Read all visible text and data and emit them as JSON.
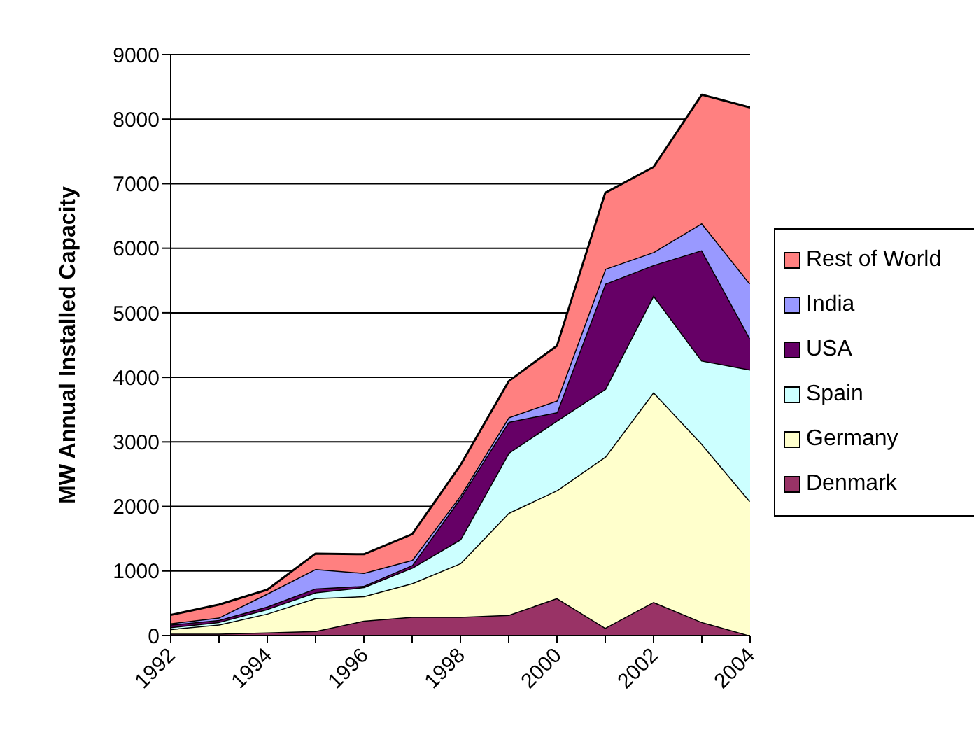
{
  "chart_data": {
    "type": "area",
    "stacked": true,
    "ylabel": "MW Annual Installed Capacity",
    "x": [
      1992,
      1993,
      1994,
      1995,
      1996,
      1997,
      1998,
      1999,
      2000,
      2001,
      2002,
      2003,
      2004
    ],
    "xlim": [
      1992,
      2004
    ],
    "xticks": [
      1992,
      {
        "value": 1993,
        "label": null
      },
      1994,
      {
        "value": 1995,
        "label": null
      },
      1996,
      {
        "value": 1997,
        "label": null
      },
      1998,
      {
        "value": 1999,
        "label": null
      },
      2000,
      {
        "value": 2001,
        "label": null
      },
      2002,
      {
        "value": 2003,
        "label": null
      },
      2004
    ],
    "ylim": [
      0,
      9000
    ],
    "yticks": [
      0,
      1000,
      2000,
      3000,
      4000,
      5000,
      6000,
      7000,
      8000,
      9000
    ],
    "grid": "y",
    "legend": "right",
    "series": [
      {
        "name": "Denmark",
        "color": "#993366",
        "values": [
          30,
          30,
          50,
          70,
          230,
          290,
          290,
          320,
          580,
          120,
          520,
          210,
          0
        ]
      },
      {
        "name": "Germany",
        "color": "#ffffcc",
        "values": [
          70,
          140,
          290,
          510,
          380,
          520,
          830,
          1580,
          1670,
          2650,
          3250,
          2760,
          2080
        ]
      },
      {
        "name": "Spain",
        "color": "#ccffff",
        "values": [
          30,
          40,
          70,
          90,
          140,
          240,
          370,
          930,
          1080,
          1050,
          1500,
          1290,
          2040
        ]
      },
      {
        "name": "USA",
        "color": "#660066",
        "values": [
          40,
          30,
          40,
          60,
          20,
          40,
          640,
          480,
          130,
          1630,
          470,
          1710,
          480
        ]
      },
      {
        "name": "India",
        "color": "#9999ff",
        "values": [
          20,
          40,
          200,
          300,
          200,
          80,
          40,
          70,
          180,
          230,
          200,
          420,
          850
        ]
      },
      {
        "name": "Rest of World",
        "color": "#ff8080",
        "values": [
          130,
          200,
          60,
          240,
          290,
          400,
          470,
          560,
          850,
          1180,
          1320,
          1990,
          2730
        ]
      }
    ]
  }
}
